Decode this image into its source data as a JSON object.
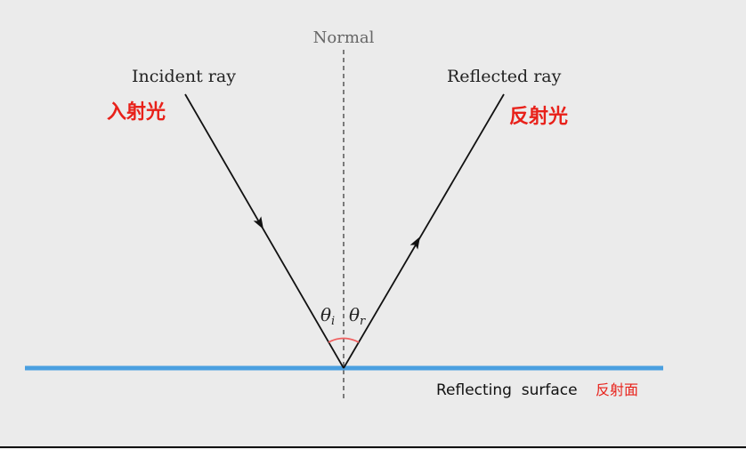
{
  "labels": {
    "normal": "Normal",
    "incident_ray": "Incident ray",
    "incident_ray_cn": "入射光",
    "reflected_ray": "Reflected ray",
    "reflected_ray_cn": "反射光",
    "theta_i": "θ",
    "theta_i_sub": "i",
    "theta_r": "θ",
    "theta_r_sub": "r",
    "surface": "Reflecting  surface",
    "surface_cn": "反射面"
  },
  "colors": {
    "surface": "#4a9fe0",
    "chinese_labels": "#e8211a",
    "angle_arc": "#f06060",
    "rays": "#111111",
    "normal": "#555555"
  }
}
